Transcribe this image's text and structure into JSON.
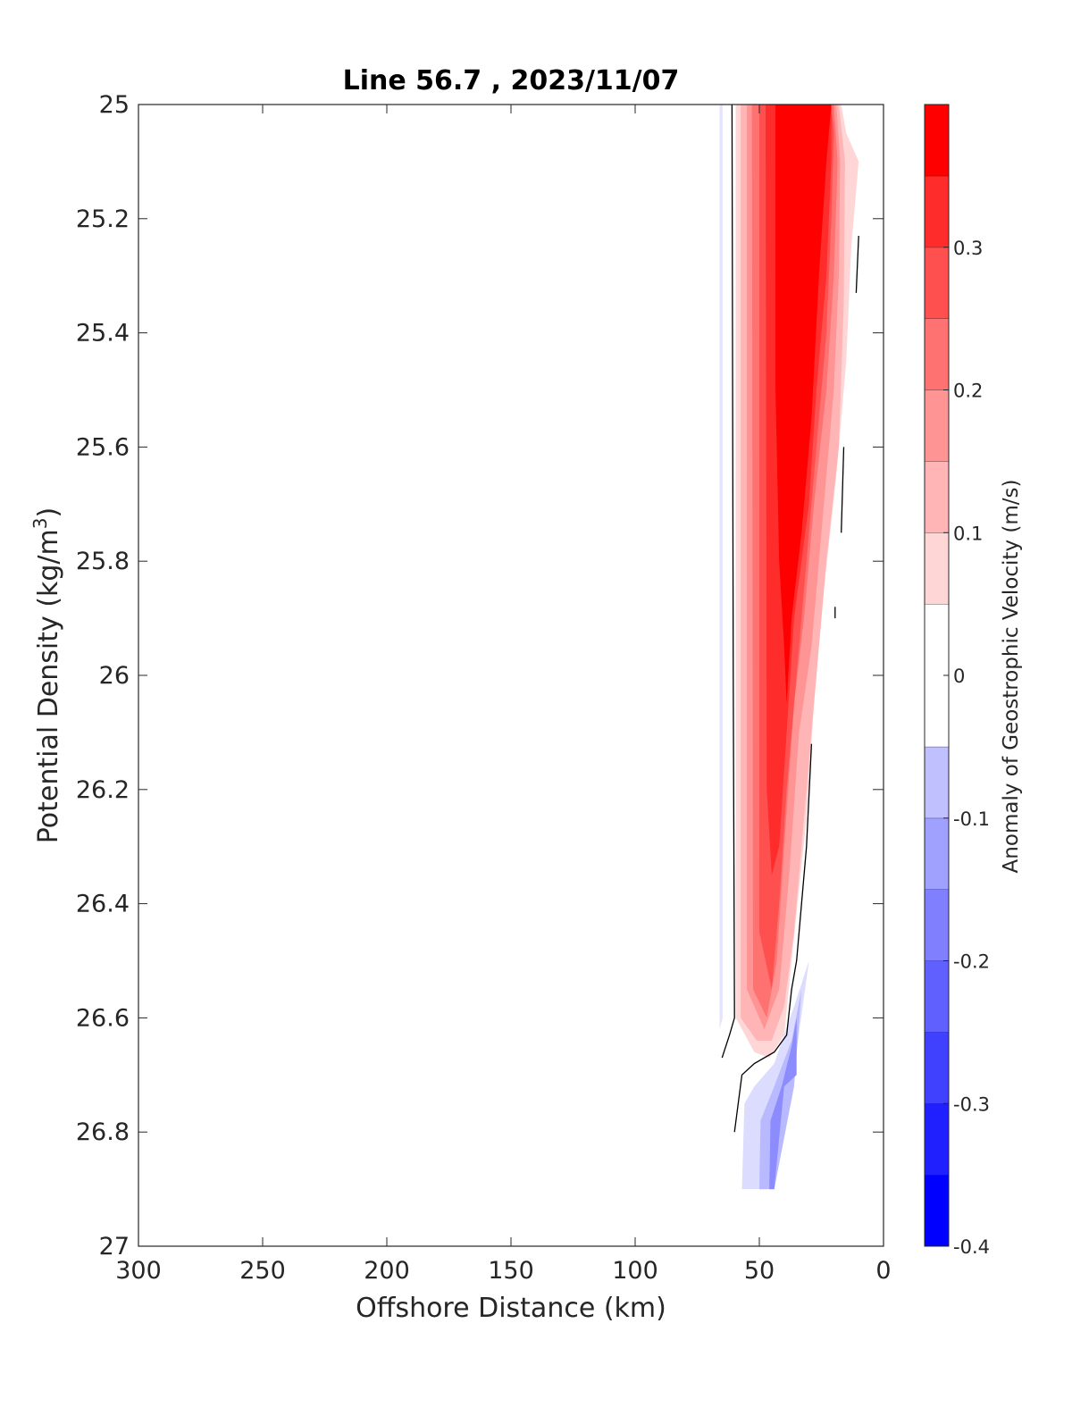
{
  "chart_data": {
    "type": "contour",
    "title": "Line 56.7 , 2023/11/07",
    "xlabel": "Offshore Distance (km)",
    "ylabel_main": "Potential Density (kg/m",
    "ylabel_sup": "3",
    "ylabel_end": ")",
    "xlim": [
      300,
      0
    ],
    "x_reversed": true,
    "ylim": [
      25,
      27
    ],
    "y_reversed": true,
    "xticks": [
      300,
      250,
      200,
      150,
      100,
      50,
      0
    ],
    "xtick_labels": [
      "300",
      "250",
      "200",
      "150",
      "100",
      "50",
      "0"
    ],
    "yticks": [
      25,
      25.2,
      25.4,
      25.6,
      25.8,
      26,
      26.2,
      26.4,
      26.6,
      26.8,
      27
    ],
    "ytick_labels": [
      "25",
      "25.2",
      "25.4",
      "25.6",
      "25.8",
      "26",
      "26.2",
      "26.4",
      "26.6",
      "26.8",
      "27"
    ],
    "colorbar": {
      "label": "Anomaly of Geostrophic Velocity (m/s)",
      "range": [
        -0.4,
        0.4
      ],
      "ticks": [
        -0.4,
        -0.3,
        -0.2,
        -0.1,
        0,
        0.1,
        0.2,
        0.3
      ],
      "tick_labels": [
        "-0.4",
        "-0.3",
        "-0.2",
        "-0.1",
        "0",
        "0.1",
        "0.2",
        "0.3"
      ],
      "levels": [
        {
          "range": [
            -0.4,
            -0.35
          ],
          "color": "#0000ff"
        },
        {
          "range": [
            -0.35,
            -0.3
          ],
          "color": "#2020ff"
        },
        {
          "range": [
            -0.3,
            -0.25
          ],
          "color": "#4040ff"
        },
        {
          "range": [
            -0.25,
            -0.2
          ],
          "color": "#6060ff"
        },
        {
          "range": [
            -0.2,
            -0.15
          ],
          "color": "#8080ff"
        },
        {
          "range": [
            -0.15,
            -0.1
          ],
          "color": "#a0a0ff"
        },
        {
          "range": [
            -0.1,
            -0.05
          ],
          "color": "#c0c0ff"
        },
        {
          "range": [
            -0.05,
            0.05
          ],
          "color": "#ffffff"
        },
        {
          "range": [
            0.05,
            0.1
          ],
          "color": "#ffd6d6"
        },
        {
          "range": [
            0.1,
            0.15
          ],
          "color": "#ffb5b5"
        },
        {
          "range": [
            0.15,
            0.2
          ],
          "color": "#ff9494"
        },
        {
          "range": [
            0.2,
            0.25
          ],
          "color": "#ff7272"
        },
        {
          "range": [
            0.25,
            0.3
          ],
          "color": "#ff5050"
        },
        {
          "range": [
            0.3,
            0.35
          ],
          "color": "#ff2c2c"
        },
        {
          "range": [
            0.35,
            0.4
          ],
          "color": "#ff0000"
        }
      ]
    },
    "filled_regions": [
      {
        "name": "negative-band-west",
        "level": -0.075,
        "color": "#e4e4ff",
        "points": [
          [
            66,
            25
          ],
          [
            64.8,
            25
          ],
          [
            64.8,
            26.6
          ],
          [
            66,
            26.62
          ]
        ]
      },
      {
        "name": "positive-0.075",
        "level": 0.075,
        "color": "#ffd6d6",
        "points": [
          [
            59.5,
            25
          ],
          [
            59.5,
            26.6
          ],
          [
            52,
            26.66
          ],
          [
            46,
            26.67
          ],
          [
            40,
            26.63
          ],
          [
            37,
            26.5
          ],
          [
            31,
            26.25
          ],
          [
            28,
            26.05
          ],
          [
            24,
            25.85
          ],
          [
            19,
            25.65
          ],
          [
            15,
            25.45
          ],
          [
            13,
            25.25
          ],
          [
            10,
            25.1
          ],
          [
            15,
            25.05
          ],
          [
            17,
            25
          ]
        ]
      },
      {
        "name": "positive-0.125",
        "level": 0.125,
        "color": "#ffb5b5",
        "points": [
          [
            57.5,
            25
          ],
          [
            57.5,
            26.6
          ],
          [
            51,
            26.64
          ],
          [
            45,
            26.64
          ],
          [
            40,
            26.58
          ],
          [
            36,
            26.45
          ],
          [
            31,
            26.2
          ],
          [
            27,
            26
          ],
          [
            23,
            25.8
          ],
          [
            18,
            25.6
          ],
          [
            16,
            25.35
          ],
          [
            15.5,
            25.1
          ],
          [
            18,
            25
          ]
        ]
      },
      {
        "name": "positive-0.175",
        "level": 0.175,
        "color": "#ff9494",
        "points": [
          [
            55,
            25
          ],
          [
            55,
            26.55
          ],
          [
            48,
            26.62
          ],
          [
            42,
            26.55
          ],
          [
            38,
            26.35
          ],
          [
            34,
            26.1
          ],
          [
            29,
            25.95
          ],
          [
            25,
            25.75
          ],
          [
            20,
            25.5
          ],
          [
            18,
            25.3
          ],
          [
            17.5,
            25.1
          ],
          [
            19,
            25
          ]
        ]
      },
      {
        "name": "positive-0.225",
        "level": 0.225,
        "color": "#ff7272",
        "points": [
          [
            53,
            25
          ],
          [
            52.5,
            26.55
          ],
          [
            47,
            26.6
          ],
          [
            43,
            26.5
          ],
          [
            40,
            26.3
          ],
          [
            36,
            26.05
          ],
          [
            32,
            25.9
          ],
          [
            28,
            25.7
          ],
          [
            23,
            25.5
          ],
          [
            20,
            25.3
          ],
          [
            18.5,
            25.1
          ],
          [
            20,
            25
          ]
        ]
      },
      {
        "name": "positive-0.275",
        "level": 0.275,
        "color": "#ff5050",
        "points": [
          [
            50,
            25
          ],
          [
            50,
            26.45
          ],
          [
            45,
            26.55
          ],
          [
            42,
            26.4
          ],
          [
            39,
            26.2
          ],
          [
            36,
            26.05
          ],
          [
            32,
            25.85
          ],
          [
            27,
            25.6
          ],
          [
            23,
            25.4
          ],
          [
            21,
            25.2
          ],
          [
            20,
            25.05
          ],
          [
            21,
            25
          ]
        ]
      },
      {
        "name": "positive-0.325",
        "level": 0.325,
        "color": "#ff2c2c",
        "points": [
          [
            47.5,
            25
          ],
          [
            47,
            26.2
          ],
          [
            45,
            26.35
          ],
          [
            42,
            26.3
          ],
          [
            39,
            26.1
          ],
          [
            36,
            25.9
          ],
          [
            30,
            25.7
          ],
          [
            27,
            25.5
          ],
          [
            23,
            25.3
          ],
          [
            21,
            25.1
          ],
          [
            21,
            25
          ]
        ]
      },
      {
        "name": "positive-0.375",
        "level": 0.375,
        "color": "#ff0000",
        "points": [
          [
            43.5,
            25
          ],
          [
            43.5,
            25.5
          ],
          [
            42,
            25.8
          ],
          [
            40,
            25.95
          ],
          [
            39,
            26.05
          ],
          [
            37,
            25.9
          ],
          [
            33,
            25.75
          ],
          [
            29,
            25.55
          ],
          [
            26,
            25.3
          ],
          [
            23,
            25.1
          ],
          [
            22,
            25.05
          ],
          [
            21,
            25
          ]
        ]
      },
      {
        "name": "negative-patch-0.075",
        "level": -0.075,
        "color": "#dcdcff",
        "points": [
          [
            57,
            26.9
          ],
          [
            56,
            26.75
          ],
          [
            52,
            26.72
          ],
          [
            44,
            26.68
          ],
          [
            36,
            26.58
          ],
          [
            30,
            26.5
          ],
          [
            37,
            26.72
          ],
          [
            44,
            26.9
          ]
        ]
      },
      {
        "name": "negative-patch-0.125",
        "level": -0.125,
        "color": "#b9b9ff",
        "points": [
          [
            50,
            26.9
          ],
          [
            49.5,
            26.78
          ],
          [
            44,
            26.72
          ],
          [
            37,
            26.64
          ],
          [
            33,
            26.55
          ],
          [
            36,
            26.72
          ],
          [
            44,
            26.9
          ]
        ]
      },
      {
        "name": "negative-patch-0.175",
        "level": -0.175,
        "color": "#8c8cff",
        "points": [
          [
            46,
            26.9
          ],
          [
            45.5,
            26.78
          ],
          [
            41,
            26.72
          ],
          [
            37,
            26.65
          ],
          [
            35,
            26.6
          ],
          [
            35,
            26.7
          ],
          [
            40,
            26.72
          ],
          [
            44,
            26.9
          ]
        ]
      }
    ],
    "contour_lines": [
      {
        "name": "zero-contour-west",
        "level": 0,
        "points": [
          [
            61,
            25
          ],
          [
            60.5,
            26.0
          ],
          [
            60,
            26.6
          ],
          [
            62,
            26.63
          ],
          [
            65,
            26.67
          ]
        ]
      },
      {
        "name": "zero-contour-south",
        "level": 0,
        "points": [
          [
            60,
            26.8
          ],
          [
            57,
            26.7
          ],
          [
            52,
            26.68
          ],
          [
            44,
            26.66
          ],
          [
            39,
            26.63
          ],
          [
            37,
            26.55
          ],
          [
            35,
            26.5
          ],
          [
            31,
            26.3
          ],
          [
            29,
            26.12
          ]
        ]
      },
      {
        "name": "zero-contour-east",
        "level": 0,
        "points": [
          [
            10,
            25.23
          ],
          [
            11,
            25.33
          ]
        ]
      },
      {
        "name": "zero-contour-east-2",
        "level": 0,
        "points": [
          [
            16,
            25.6
          ],
          [
            17,
            25.75
          ]
        ]
      },
      {
        "name": "zero-contour-east-3",
        "level": 0,
        "points": [
          [
            19.5,
            25.88
          ],
          [
            19.5,
            25.9
          ]
        ]
      }
    ]
  }
}
